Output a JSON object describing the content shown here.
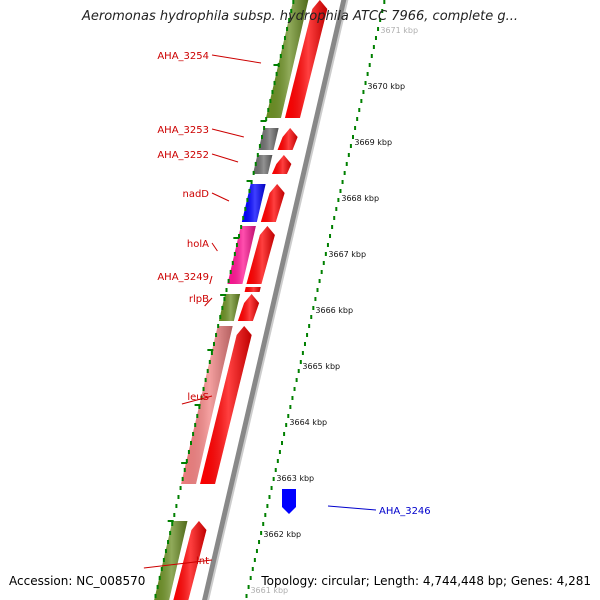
{
  "title": "Aeromonas hydrophila subsp. hydrophila ATCC 7966, complete g...",
  "footer": {
    "accession": "Accession: NC_008570",
    "stats": "Topology: circular; Length: 4,744,448 bp; Genes: 4,281"
  },
  "colors": {
    "background": "#ffffff",
    "reverse_label": "#cc0000",
    "forward_label": "#0000cc",
    "cds_track": "#ff0000",
    "tick_dots": "#008000",
    "backbone": "#888888"
  },
  "ticks": [
    {
      "label": "3671 kbp"
    },
    {
      "label": "3670 kbp"
    },
    {
      "label": "3669 kbp"
    },
    {
      "label": "3668 kbp"
    },
    {
      "label": "3667 kbp"
    },
    {
      "label": "3666 kbp"
    },
    {
      "label": "3665 kbp"
    },
    {
      "label": "3664 kbp"
    },
    {
      "label": "3663 kbp"
    },
    {
      "label": "3662 kbp"
    },
    {
      "label": "3661 kbp"
    }
  ],
  "genes": [
    {
      "name": "AHA_3254",
      "strand": "-",
      "cog_color": "#6b8e23"
    },
    {
      "name": "AHA_3253",
      "strand": "-",
      "cog_color": "#6e6e6e"
    },
    {
      "name": "AHA_3252",
      "strand": "-",
      "cog_color": "#6e6e6e"
    },
    {
      "name": "nadD",
      "strand": "-",
      "cog_color": "#0000ff"
    },
    {
      "name": "holA",
      "strand": "-",
      "cog_color": "#ff1493"
    },
    {
      "name": "AHA_3249",
      "strand": "-",
      "cog_color": "#ff0000"
    },
    {
      "name": "rlpB",
      "strand": "-",
      "cog_color": "#6b8e23"
    },
    {
      "name": "leuS",
      "strand": "-",
      "cog_color": "#f08080"
    },
    {
      "name": "AHA_3246",
      "strand": "+",
      "cog_color": "#0000ff"
    },
    {
      "name": "lnt",
      "strand": "-",
      "cog_color": "#6b8e23"
    }
  ]
}
